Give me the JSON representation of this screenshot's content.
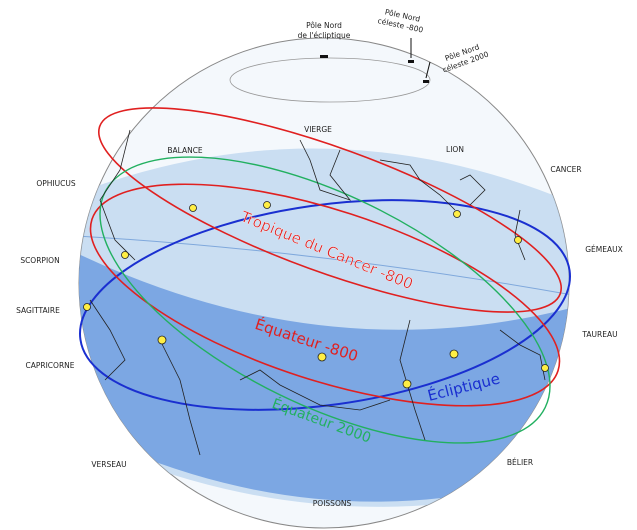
{
  "poles": {
    "ecliptic": [
      "Pôle Nord",
      "de l'écliptique"
    ],
    "celestial_800": [
      "Pôle Nord",
      "céleste -800"
    ],
    "celestial_2000": [
      "Pôle Nord",
      "céleste 2000"
    ]
  },
  "constellations": [
    "VIERGE",
    "BALANCE",
    "LION",
    "CANCER",
    "OPHIUCUS",
    "GÉMEAUX",
    "SCORPION",
    "SAGITTAIRE",
    "TAUREAU",
    "CAPRICORNE",
    "VERSEAU",
    "BÉLIER",
    "POISSONS"
  ],
  "circles": {
    "tropic": "Tropique du Cancer -800",
    "equator_800": "Équateur -800",
    "ecliptic": "Écliptique",
    "equator_2000": "Équateur 2000"
  }
}
